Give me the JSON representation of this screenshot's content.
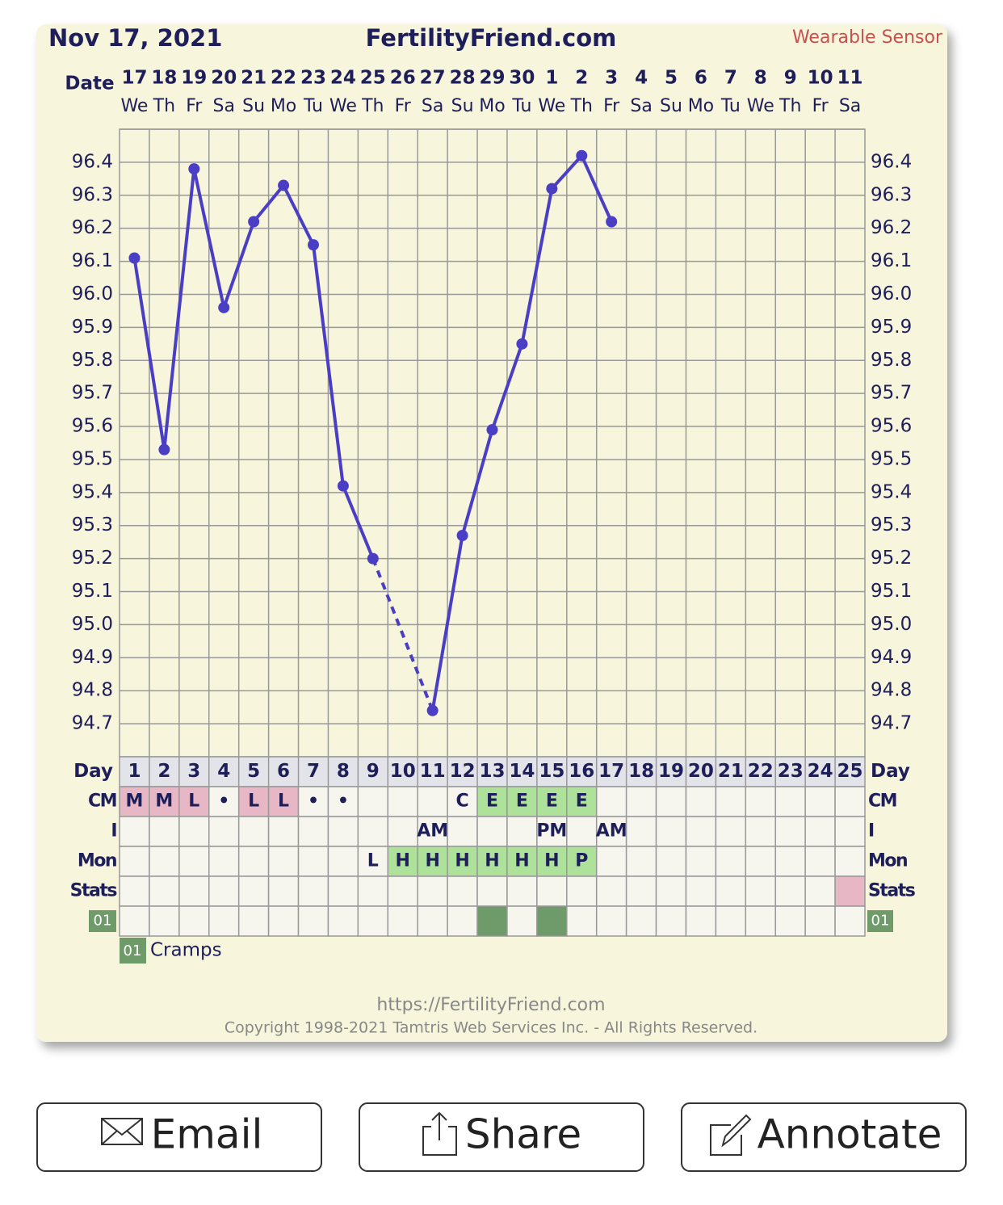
{
  "header": {
    "date": "Nov 17, 2021",
    "site": "FertilityFriend.com",
    "badge": "Wearable Sensor",
    "date_label": "Date"
  },
  "chart_data": {
    "type": "line",
    "categories": [
      "17",
      "18",
      "19",
      "20",
      "21",
      "22",
      "23",
      "24",
      "25",
      "26",
      "27",
      "28",
      "29",
      "30",
      "1",
      "2",
      "3",
      "4",
      "5",
      "6",
      "7",
      "8",
      "9",
      "10",
      "11"
    ],
    "weekdays": [
      "We",
      "Th",
      "Fr",
      "Sa",
      "Su",
      "Mo",
      "Tu",
      "We",
      "Th",
      "Fr",
      "Sa",
      "Su",
      "Mo",
      "Tu",
      "We",
      "Th",
      "Fr",
      "Sa",
      "Su",
      "Mo",
      "Tu",
      "We",
      "Th",
      "Fr",
      "Sa"
    ],
    "values": [
      96.11,
      95.53,
      96.38,
      95.96,
      96.22,
      96.33,
      96.15,
      95.42,
      95.2,
      null,
      94.74,
      95.27,
      95.59,
      95.85,
      96.32,
      96.42,
      96.22,
      null,
      null,
      null,
      null,
      null,
      null,
      null,
      null
    ],
    "color": "#4a3fc4",
    "ylim": [
      94.6,
      96.5
    ],
    "yticks": [
      94.7,
      94.8,
      94.9,
      {
        "value": 95,
        "label": "95.0"
      },
      95.1,
      95.2,
      95.3,
      95.4,
      95.5,
      95.6,
      95.7,
      95.8,
      95.9,
      {
        "value": 96,
        "label": "96.0"
      },
      96.1,
      96.2,
      96.3,
      96.4
    ],
    "grid": true
  },
  "table": {
    "day_label": "Day",
    "days": [
      1,
      2,
      3,
      4,
      5,
      6,
      7,
      8,
      9,
      10,
      11,
      12,
      13,
      14,
      15,
      16,
      17,
      18,
      19,
      20,
      21,
      22,
      23,
      24,
      25
    ],
    "rows": [
      {
        "label": "CM",
        "cells": [
          {
            "text": "M",
            "color": "#e8b7c6"
          },
          {
            "text": "M",
            "color": "#e8b7c6"
          },
          {
            "text": "L",
            "color": "#e8b7c6"
          },
          {
            "text": "•"
          },
          {
            "text": "L",
            "color": "#e8b7c6"
          },
          {
            "text": "L",
            "color": "#e8b7c6"
          },
          {
            "text": "•"
          },
          {
            "text": "•"
          },
          null,
          null,
          null,
          {
            "text": "C"
          },
          {
            "text": "E",
            "color": "#aee29a"
          },
          {
            "text": "E",
            "color": "#aee29a"
          },
          {
            "text": "E",
            "color": "#aee29a"
          },
          {
            "text": "E",
            "color": "#aee29a"
          },
          null,
          null,
          null,
          null,
          null,
          null,
          null,
          null,
          null
        ]
      },
      {
        "label": "I",
        "cells": [
          null,
          null,
          null,
          null,
          null,
          null,
          null,
          null,
          null,
          null,
          {
            "text": "AM"
          },
          null,
          null,
          null,
          {
            "text": "PM"
          },
          null,
          {
            "text": "AM"
          },
          null,
          null,
          null,
          null,
          null,
          null,
          null,
          null
        ]
      },
      {
        "label": "Mon",
        "cells": [
          null,
          null,
          null,
          null,
          null,
          null,
          null,
          null,
          {
            "text": "L"
          },
          {
            "text": "H",
            "color": "#aee29a"
          },
          {
            "text": "H",
            "color": "#aee29a"
          },
          {
            "text": "H",
            "color": "#aee29a"
          },
          {
            "text": "H",
            "color": "#aee29a"
          },
          {
            "text": "H",
            "color": "#aee29a"
          },
          {
            "text": "H",
            "color": "#aee29a"
          },
          {
            "text": "P",
            "color": "#aee29a"
          },
          null,
          null,
          null,
          null,
          null,
          null,
          null,
          null,
          null
        ]
      },
      {
        "label": "Stats",
        "cells": [
          null,
          null,
          null,
          null,
          null,
          null,
          null,
          null,
          null,
          null,
          null,
          null,
          null,
          null,
          null,
          null,
          null,
          null,
          null,
          null,
          null,
          null,
          null,
          null,
          {
            "color": "#e8b7c6"
          }
        ]
      },
      {
        "label": "01",
        "label_color": "#6f9a6a",
        "cells": [
          null,
          null,
          null,
          null,
          null,
          null,
          null,
          null,
          null,
          null,
          null,
          null,
          {
            "color": "#6f9a6a"
          },
          null,
          {
            "color": "#6f9a6a"
          },
          null,
          null,
          null,
          null,
          null,
          null,
          null,
          null,
          null,
          null
        ]
      }
    ]
  },
  "legend": {
    "code": "01",
    "label": "Cramps",
    "color": "#6f9a6a"
  },
  "footer": {
    "url": "https://FertilityFriend.com",
    "copyright": "Copyright 1998-2021 Tamtris Web Services Inc. - All Rights Reserved."
  },
  "buttons": [
    "Email",
    "Share",
    "Annotate"
  ]
}
